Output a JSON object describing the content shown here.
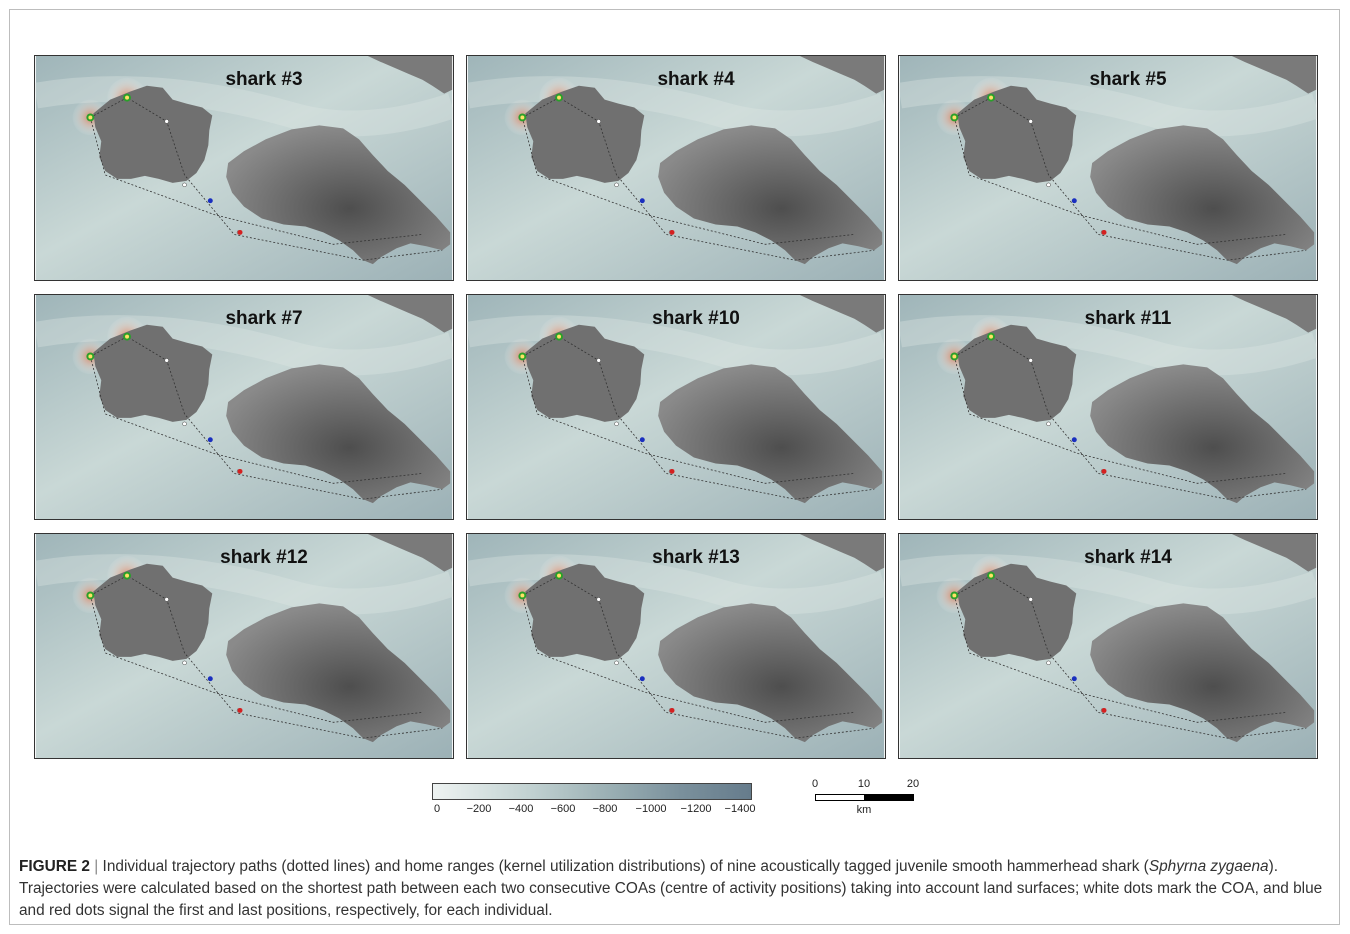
{
  "panels": [
    {
      "title": "shark #3"
    },
    {
      "title": "shark #4"
    },
    {
      "title": "shark #5"
    },
    {
      "title": "shark #7"
    },
    {
      "title": "shark #10"
    },
    {
      "title": "shark #11"
    },
    {
      "title": "shark #12"
    },
    {
      "title": "shark #13"
    },
    {
      "title": "shark #14"
    }
  ],
  "depth_legend": {
    "ticks": [
      "0",
      "−200",
      "−400",
      "−600",
      "−800",
      "−1000",
      "−1200",
      "−1400"
    ],
    "colors": {
      "shallow": "#eef3f2",
      "deep": "#667c8c"
    }
  },
  "scale_bar": {
    "ticks": [
      "0",
      "10",
      "20"
    ],
    "unit": "km"
  },
  "caption": {
    "label": "FIGURE 2",
    "separator": "|",
    "text_1": "Individual trajectory paths (dotted lines) and home ranges (kernel utilization distributions) of nine acoustically tagged juvenile smooth hammerhead shark (",
    "species": "Sphyrna zygaena",
    "text_2": "). Trajectories were calculated based on the shortest path between each two consecutive COAs (centre of activity positions) taking into account land surfaces; white dots mark the COA, and blue and red dots signal the first and last positions, respectively, for each individual."
  },
  "colors": {
    "land": "#6f6f6f",
    "first_position": "#1a2fbf",
    "last_position": "#d42020",
    "coa": "#ffffff"
  }
}
